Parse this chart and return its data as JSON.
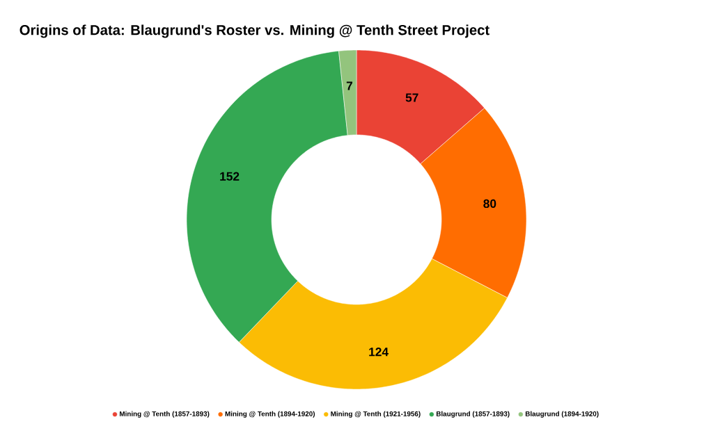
{
  "chart_data": {
    "type": "donut",
    "title": "Origins of Data: Blaugrund's Roster vs. Mining @ Tenth Street Project",
    "categories": [
      "Mining @ Tenth (1857-1893)",
      "Mining @ Tenth (1894-1920)",
      "Mining @ Tenth (1921-1956)",
      "Blaugrund (1857-1893)",
      "Blaugrund (1894-1920)"
    ],
    "values": [
      57,
      80,
      124,
      152,
      7
    ],
    "colors": [
      "#ea4335",
      "#ff6d01",
      "#fbbc04",
      "#34a853",
      "#93c47d"
    ],
    "data_labels": true,
    "legend": "bottom"
  }
}
